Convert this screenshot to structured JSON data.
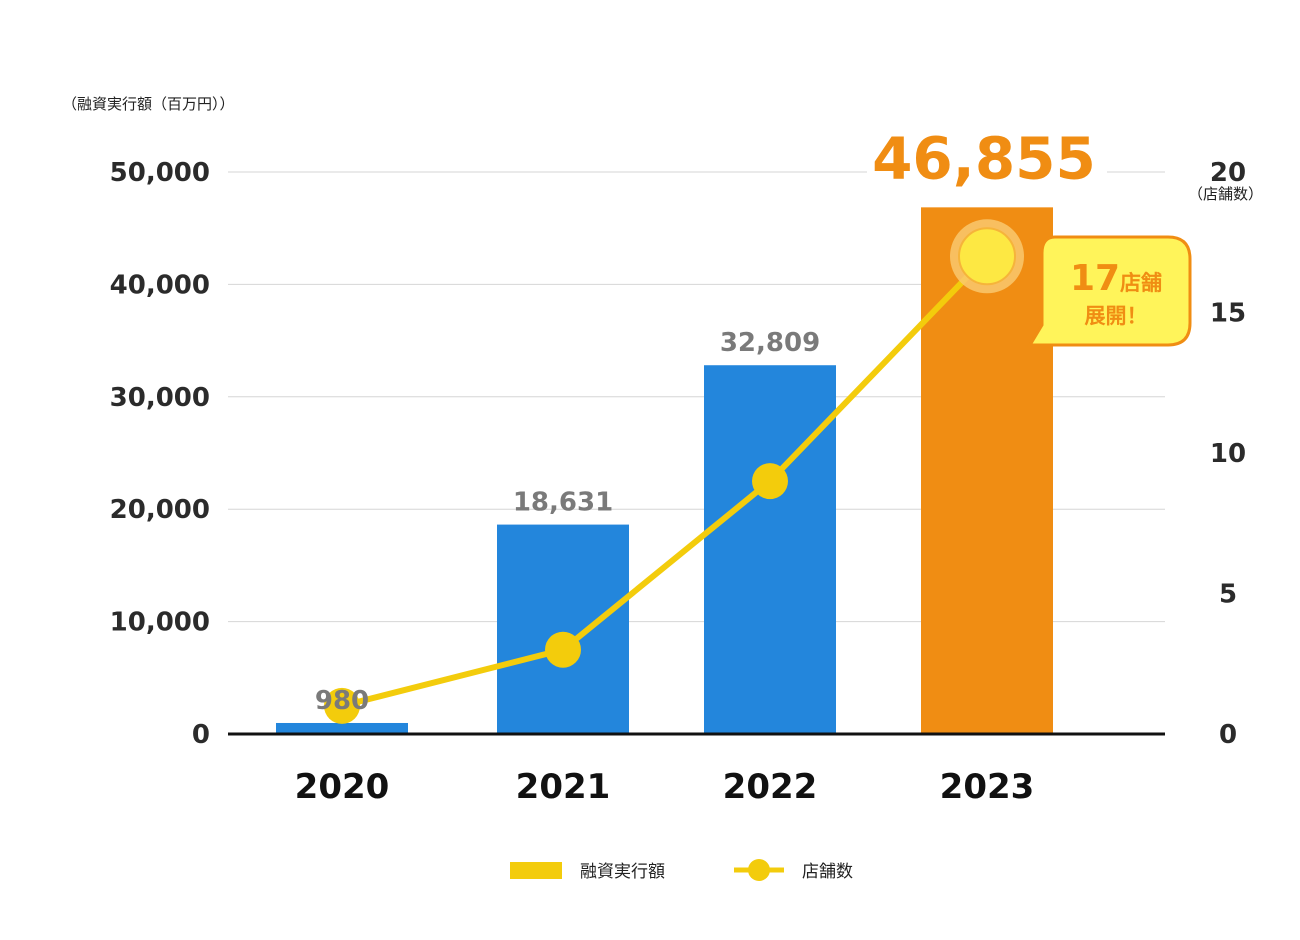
{
  "chart_data": {
    "type": "bar",
    "categories": [
      "2020",
      "2021",
      "2022",
      "2023"
    ],
    "y_left": {
      "label": "（融資実行額（百万円））",
      "ticks": [
        "0",
        "10,000",
        "20,000",
        "30,000",
        "40,000",
        "50,000"
      ],
      "range": [
        0,
        50000
      ]
    },
    "y_right": {
      "label": "（店舗数）",
      "ticks": [
        "0",
        "5",
        "10",
        "15",
        "20"
      ],
      "range": [
        0,
        20
      ]
    },
    "series": [
      {
        "name": "融資実行額",
        "type": "bar",
        "axis": "left",
        "values": [
          980,
          18631,
          32809,
          46855
        ],
        "labels": [
          "980",
          "18,631",
          "32,809",
          "46,855"
        ],
        "colors": [
          "#2386dc",
          "#2386dc",
          "#2386dc",
          "#f08d13"
        ]
      },
      {
        "name": "店舗数",
        "type": "line",
        "axis": "right",
        "values": [
          1,
          3,
          9,
          17
        ],
        "color": "#f3cc0c"
      }
    ],
    "callout": {
      "count": "17",
      "unit": "店舗",
      "text": "展開！"
    },
    "grid": true,
    "legend_position": "bottom"
  },
  "colors": {
    "bar": "#2386dc",
    "bar_highlight": "#f08d13",
    "line": "#f3cc0c",
    "callout_fill": "#fff45a",
    "callout_border": "#f08d13"
  }
}
